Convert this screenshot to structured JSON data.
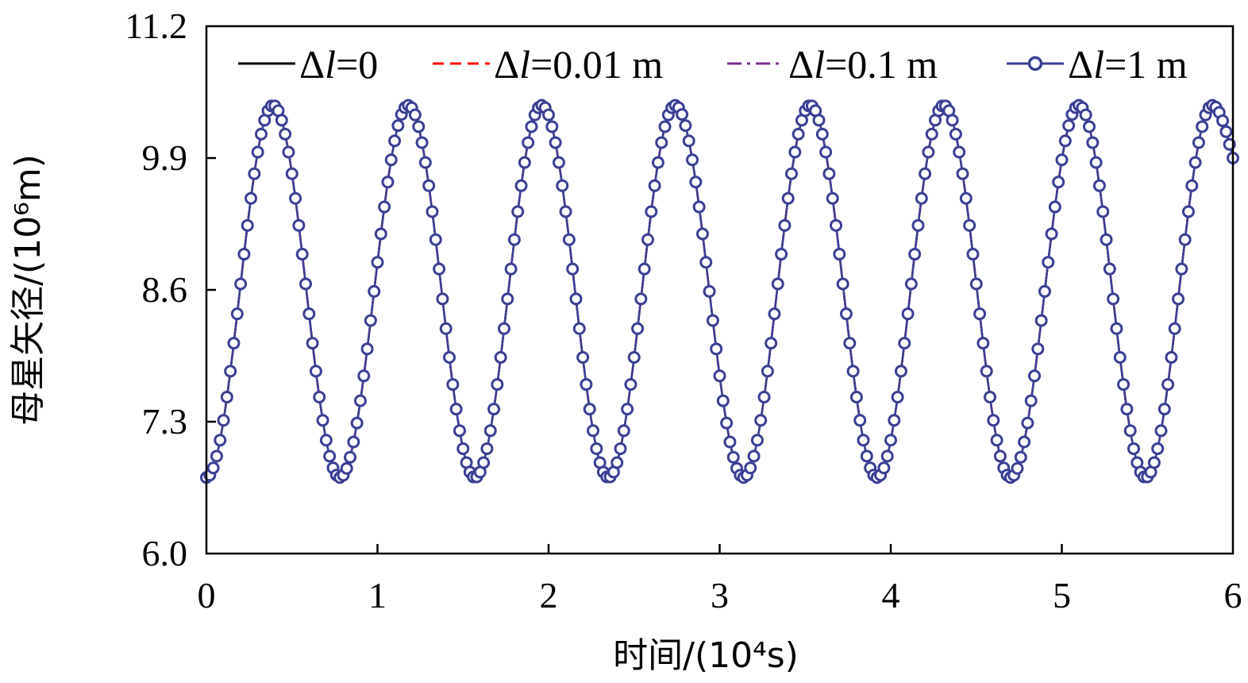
{
  "chart_data": {
    "type": "line",
    "xlabel": "时间/(10⁴s)",
    "ylabel": "母星矢径/(10⁶m)",
    "xlim": [
      0,
      6
    ],
    "ylim": [
      6.0,
      11.2
    ],
    "x_ticks": [
      "0",
      "1",
      "2",
      "3",
      "4",
      "5",
      "6"
    ],
    "y_ticks": [
      "6.0",
      "7.3",
      "8.6",
      "9.9",
      "11.2"
    ],
    "grid": false,
    "legend_position": "top",
    "curve": {
      "shape": "periodic",
      "min": 6.75,
      "max": 10.42,
      "period": 0.784,
      "start_value": 6.75,
      "peak_times": [
        0.39,
        1.18,
        1.96,
        2.74,
        3.53,
        4.31,
        5.1,
        5.88
      ],
      "trough_times": [
        0.78,
        1.57,
        2.35,
        3.14,
        3.92,
        4.7,
        5.49
      ],
      "end_value": 9.9
    },
    "series": [
      {
        "name_prefix": "Δ",
        "name_var": "l",
        "name_value": "=0",
        "style": "solid",
        "color": "#000000"
      },
      {
        "name_prefix": "Δ",
        "name_var": "l",
        "name_value": "=0.01 m",
        "style": "dashed",
        "color": "#ff0000"
      },
      {
        "name_prefix": "Δ",
        "name_var": "l",
        "name_value": "=0.1 m",
        "style": "dashdot",
        "color": "#7b2d8e"
      },
      {
        "name_prefix": "Δ",
        "name_var": "l",
        "name_value": "=1 m",
        "style": "solid-circle-markers",
        "color": "#3a3f94"
      }
    ]
  }
}
